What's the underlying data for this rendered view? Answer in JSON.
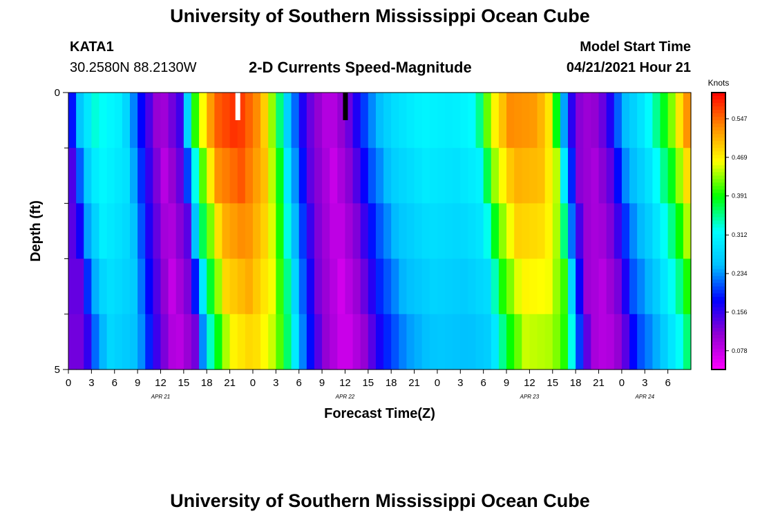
{
  "header": {
    "title_top": "University of Southern Mississippi Ocean Cube",
    "station_id": "KATA1",
    "station_coords": "30.2580N  88.2130W",
    "chart_subtitle": "2-D Currents Speed-Magnitude",
    "model_start_label": "Model Start Time",
    "model_start_value": "04/21/2021 Hour 21",
    "title_bottom": "University of Southern Mississippi Ocean Cube"
  },
  "chart_data": {
    "type": "heatmap",
    "title": "2-D Currents Speed-Magnitude",
    "xlabel": "Forecast Time(Z)",
    "ylabel": "Depth (ft)",
    "x_hours": [
      0,
      81
    ],
    "y_range": [
      0,
      5
    ],
    "y_ticks": [
      "0",
      "5"
    ],
    "x_tick_labels": [
      "0",
      "3",
      "6",
      "9",
      "12",
      "15",
      "18",
      "21",
      "0",
      "3",
      "6",
      "9",
      "12",
      "15",
      "18",
      "21",
      "0",
      "3",
      "6",
      "9",
      "12",
      "15",
      "18",
      "21",
      "0",
      "3",
      "6"
    ],
    "date_labels": [
      {
        "text": "APR 21",
        "hour": 12
      },
      {
        "text": "APR 22",
        "hour": 36
      },
      {
        "text": "APR 23",
        "hour": 60
      },
      {
        "text": "APR 24",
        "hour": 75
      }
    ],
    "colorbar": {
      "label": "Knots",
      "ticks": [
        "0.547",
        "0.469",
        "0.391",
        "0.312",
        "0.234",
        "0.156",
        "0.078"
      ],
      "tick_values": [
        0.547,
        0.469,
        0.391,
        0.312,
        0.234,
        0.156,
        0.078
      ],
      "vmin": 0.04,
      "vmax": 0.6,
      "colors": [
        "#ff00ff",
        "#9400d3",
        "#0000ff",
        "#00bfff",
        "#00ffff",
        "#00ff00",
        "#ffff00",
        "#ff8c00",
        "#ff0000"
      ]
    },
    "depth_bins": 5,
    "depth_row_offsets": [
      0,
      0.5,
      1.0,
      1.5,
      2.0
    ],
    "surface_profile": [
      {
        "hour": 0,
        "value": 0.15
      },
      {
        "hour": 1.5,
        "value": 0.26
      },
      {
        "hour": 3.5,
        "value": 0.33
      },
      {
        "hour": 7,
        "value": 0.3
      },
      {
        "hour": 9.5,
        "value": 0.18
      },
      {
        "hour": 12,
        "value": 0.09
      },
      {
        "hour": 14.5,
        "value": 0.15
      },
      {
        "hour": 16.5,
        "value": 0.4
      },
      {
        "hour": 19,
        "value": 0.55
      },
      {
        "hour": 22,
        "value": 0.58
      },
      {
        "hour": 25,
        "value": 0.52
      },
      {
        "hour": 27,
        "value": 0.4
      },
      {
        "hour": 28.5,
        "value": 0.27
      },
      {
        "hour": 31,
        "value": 0.14
      },
      {
        "hour": 34,
        "value": 0.08
      },
      {
        "hour": 36.5,
        "value": 0.13
      },
      {
        "hour": 39,
        "value": 0.22
      },
      {
        "hour": 42,
        "value": 0.28
      },
      {
        "hour": 46,
        "value": 0.31
      },
      {
        "hour": 50,
        "value": 0.3
      },
      {
        "hour": 53,
        "value": 0.32
      },
      {
        "hour": 55,
        "value": 0.45
      },
      {
        "hour": 57.5,
        "value": 0.53
      },
      {
        "hour": 61,
        "value": 0.52
      },
      {
        "hour": 63,
        "value": 0.46
      },
      {
        "hour": 64.5,
        "value": 0.24
      },
      {
        "hour": 66,
        "value": 0.12
      },
      {
        "hour": 68,
        "value": 0.1
      },
      {
        "hour": 70,
        "value": 0.14
      },
      {
        "hour": 72,
        "value": 0.24
      },
      {
        "hour": 75,
        "value": 0.3
      },
      {
        "hour": 78,
        "value": 0.4
      },
      {
        "hour": 81,
        "value": 0.55
      }
    ],
    "markers": [
      {
        "hour": 22,
        "color": "#ffffff"
      },
      {
        "hour": 36,
        "color": "#000000"
      }
    ]
  }
}
